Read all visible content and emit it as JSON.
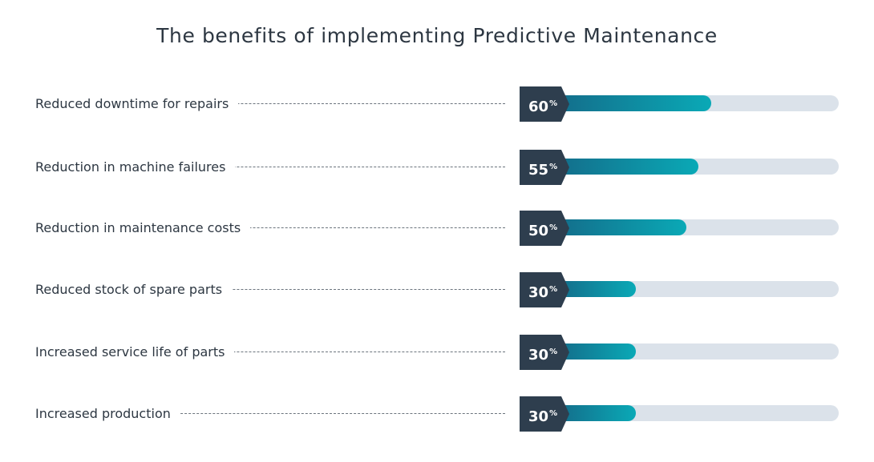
{
  "chart_data": {
    "type": "bar",
    "title": "The benefits of implementing Predictive Maintenance",
    "orientation": "horizontal",
    "categories": [
      "Reduced downtime for repairs",
      "Reduction in machine failures",
      "Reduction in maintenance costs",
      "Reduced stock of spare parts",
      "Increased service life of parts",
      "Increased production"
    ],
    "values": [
      60,
      55,
      50,
      30,
      30,
      30
    ],
    "value_labels": [
      "60",
      "55",
      "50",
      "30",
      "30",
      "30"
    ],
    "unit": "%",
    "xlim": [
      0,
      100
    ],
    "grid": false,
    "legend": "none",
    "colors": {
      "bar_start": "#136f8c",
      "bar_end": "#0aa9b6",
      "track": "#dbe2ea",
      "badge": "#2e3e4e",
      "text": "#2d3742"
    }
  }
}
